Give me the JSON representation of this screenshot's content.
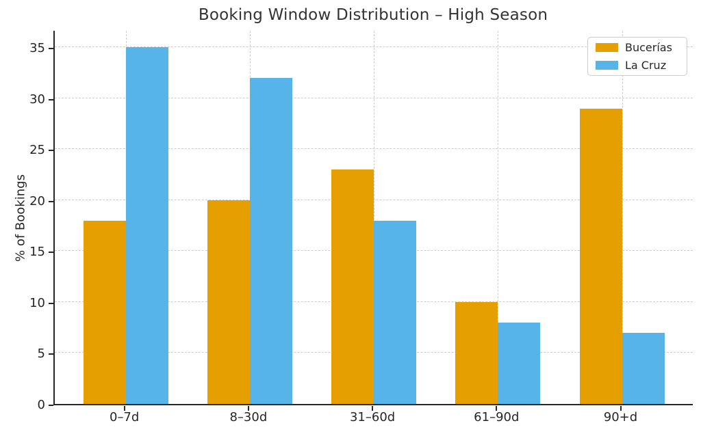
{
  "chart_data": {
    "type": "bar",
    "title": "Booking Window Distribution – High Season",
    "xlabel": "",
    "ylabel": "% of Bookings",
    "categories": [
      "0–7d",
      "8–30d",
      "31–60d",
      "61–90d",
      "90+d"
    ],
    "series": [
      {
        "name": "Bucerías",
        "color": "#E69F00",
        "values": [
          18,
          20,
          23,
          10,
          29
        ]
      },
      {
        "name": "La Cruz",
        "color": "#56B4E9",
        "values": [
          35,
          32,
          18,
          8,
          7
        ]
      }
    ],
    "yticks": [
      0,
      5,
      10,
      15,
      20,
      25,
      30,
      35
    ],
    "ylim": [
      0,
      36.75
    ],
    "grid": true,
    "grid_style": "dashed",
    "grid_color": "#cccccc",
    "spine_color": "#262626",
    "text_color": "#262626",
    "background": "#ffffff",
    "legend_position": "top-right"
  }
}
